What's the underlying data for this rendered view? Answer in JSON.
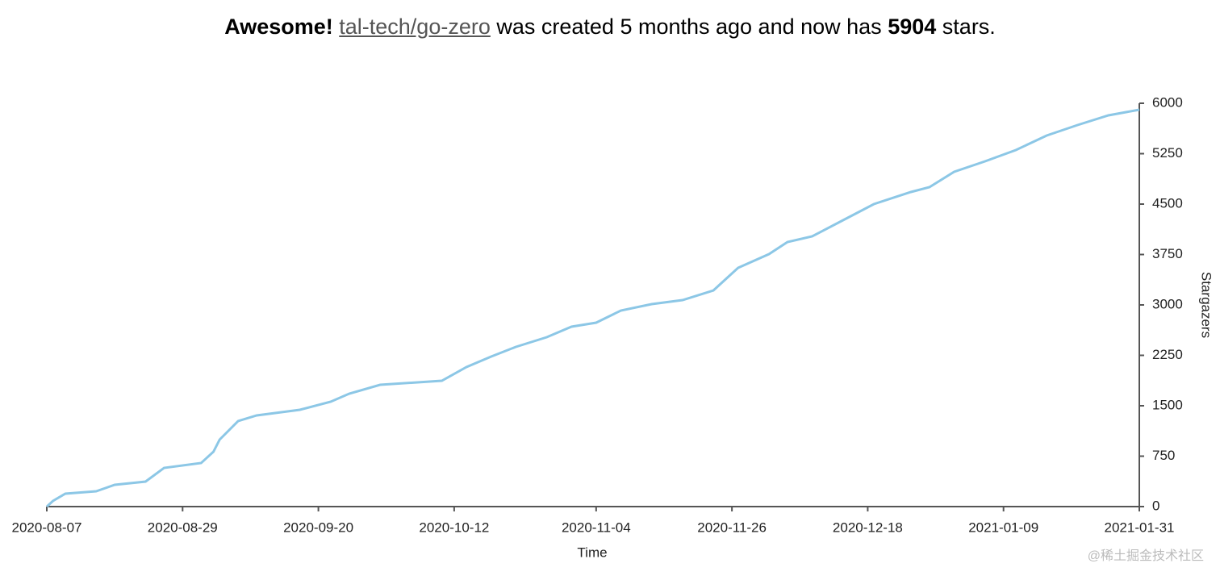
{
  "chart_data": {
    "type": "line",
    "title_parts": [
      "Awesome!",
      "tal-tech/go-zero",
      "was created 5 months ago and now has",
      "5904",
      "stars."
    ],
    "x_label": "Time",
    "y_label": "Stargazers",
    "watermark": "@稀土掘金技术社区",
    "x": [
      "2020-08-07",
      "2020-08-08",
      "2020-08-10",
      "2020-08-15",
      "2020-08-18",
      "2020-08-23",
      "2020-08-26",
      "2020-09-01",
      "2020-09-03",
      "2020-09-04",
      "2020-09-07",
      "2020-09-10",
      "2020-09-17",
      "2020-09-22",
      "2020-09-25",
      "2020-09-30",
      "2020-10-10",
      "2020-10-14",
      "2020-10-18",
      "2020-10-22",
      "2020-10-27",
      "2020-10-31",
      "2020-11-04",
      "2020-11-08",
      "2020-11-13",
      "2020-11-18",
      "2020-11-23",
      "2020-11-27",
      "2020-12-02",
      "2020-12-05",
      "2020-12-09",
      "2020-12-14",
      "2020-12-19",
      "2020-12-25",
      "2020-12-28",
      "2021-01-01",
      "2021-01-06",
      "2021-01-11",
      "2021-01-16",
      "2021-01-21",
      "2021-01-26",
      "2021-01-31"
    ],
    "series": [
      {
        "name": "stars",
        "color": "#8cc7e6",
        "values": [
          0,
          84,
          192,
          228,
          324,
          372,
          576,
          648,
          816,
          996,
          1272,
          1356,
          1440,
          1560,
          1680,
          1812,
          1872,
          2076,
          2232,
          2376,
          2520,
          2676,
          2736,
          2916,
          3012,
          3072,
          3216,
          3552,
          3756,
          3936,
          4020,
          4260,
          4500,
          4680,
          4752,
          4980,
          5136,
          5304,
          5520,
          5676,
          5820,
          5904
        ]
      }
    ],
    "xlim": [
      "2020-08-07",
      "2021-01-31"
    ],
    "xticks": [
      "2020-08-07",
      "2020-08-29",
      "2020-09-20",
      "2020-10-12",
      "2020-11-04",
      "2020-11-26",
      "2020-12-18",
      "2021-01-09",
      "2021-01-31"
    ],
    "ylim": [
      0,
      6000
    ],
    "yticks": [
      0,
      750,
      1500,
      2250,
      3000,
      3750,
      4500,
      5250,
      6000
    ]
  }
}
